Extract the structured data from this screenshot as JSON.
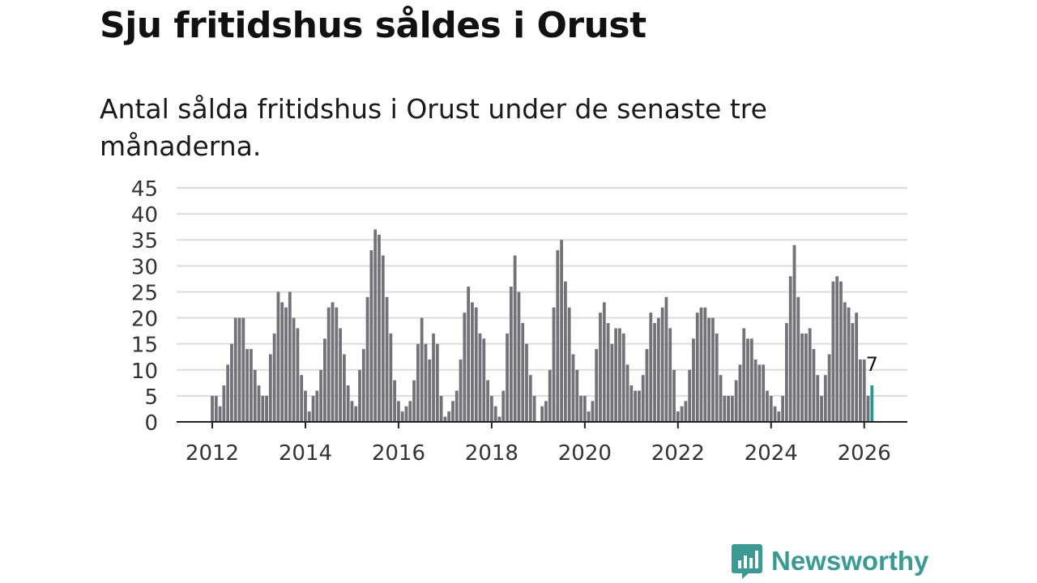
{
  "header": {
    "title": "Sju fritidshus såldes i Orust",
    "subtitle": "Antal sålda fritidshus i Orust under de senaste tre månaderna."
  },
  "brand": {
    "name": "Newsworthy",
    "color": "#3a9b95"
  },
  "chart_data": {
    "type": "bar",
    "title": "Sju fritidshus såldes i Orust",
    "xlabel": "",
    "ylabel": "",
    "ylim": [
      0,
      45
    ],
    "yticks": [
      0,
      5,
      10,
      15,
      20,
      25,
      30,
      35,
      40,
      45
    ],
    "xticks": [
      "2012",
      "2014",
      "2016",
      "2018",
      "2020",
      "2022",
      "2024",
      "2026"
    ],
    "start": "2012-01",
    "grid": true,
    "bar_color": "#737278",
    "highlight_color": "#1a9e96",
    "highlight_label": "7",
    "values": [
      5,
      5,
      3,
      7,
      11,
      15,
      20,
      20,
      20,
      14,
      14,
      10,
      7,
      5,
      5,
      13,
      17,
      25,
      23,
      22,
      25,
      20,
      18,
      9,
      6,
      2,
      5,
      6,
      10,
      16,
      22,
      23,
      22,
      18,
      13,
      7,
      4,
      3,
      10,
      14,
      24,
      33,
      37,
      36,
      32,
      24,
      17,
      8,
      4,
      2,
      3,
      4,
      8,
      15,
      20,
      15,
      12,
      17,
      15,
      5,
      1,
      2,
      4,
      6,
      12,
      21,
      26,
      23,
      22,
      17,
      16,
      8,
      5,
      3,
      1,
      6,
      17,
      26,
      32,
      25,
      19,
      15,
      9,
      5,
      0,
      3,
      4,
      10,
      22,
      33,
      35,
      27,
      22,
      13,
      10,
      5,
      5,
      2,
      4,
      14,
      21,
      23,
      19,
      15,
      18,
      18,
      17,
      11,
      7,
      6,
      6,
      9,
      14,
      21,
      19,
      20,
      22,
      24,
      18,
      10,
      2,
      3,
      4,
      10,
      16,
      21,
      22,
      22,
      20,
      20,
      17,
      9,
      5,
      5,
      5,
      8,
      11,
      18,
      16,
      16,
      12,
      11,
      11,
      6,
      5,
      3,
      2,
      5,
      19,
      28,
      34,
      24,
      17,
      17,
      18,
      14,
      9,
      5,
      9,
      13,
      27,
      28,
      27,
      23,
      22,
      19,
      21,
      12,
      12,
      5,
      7
    ]
  }
}
